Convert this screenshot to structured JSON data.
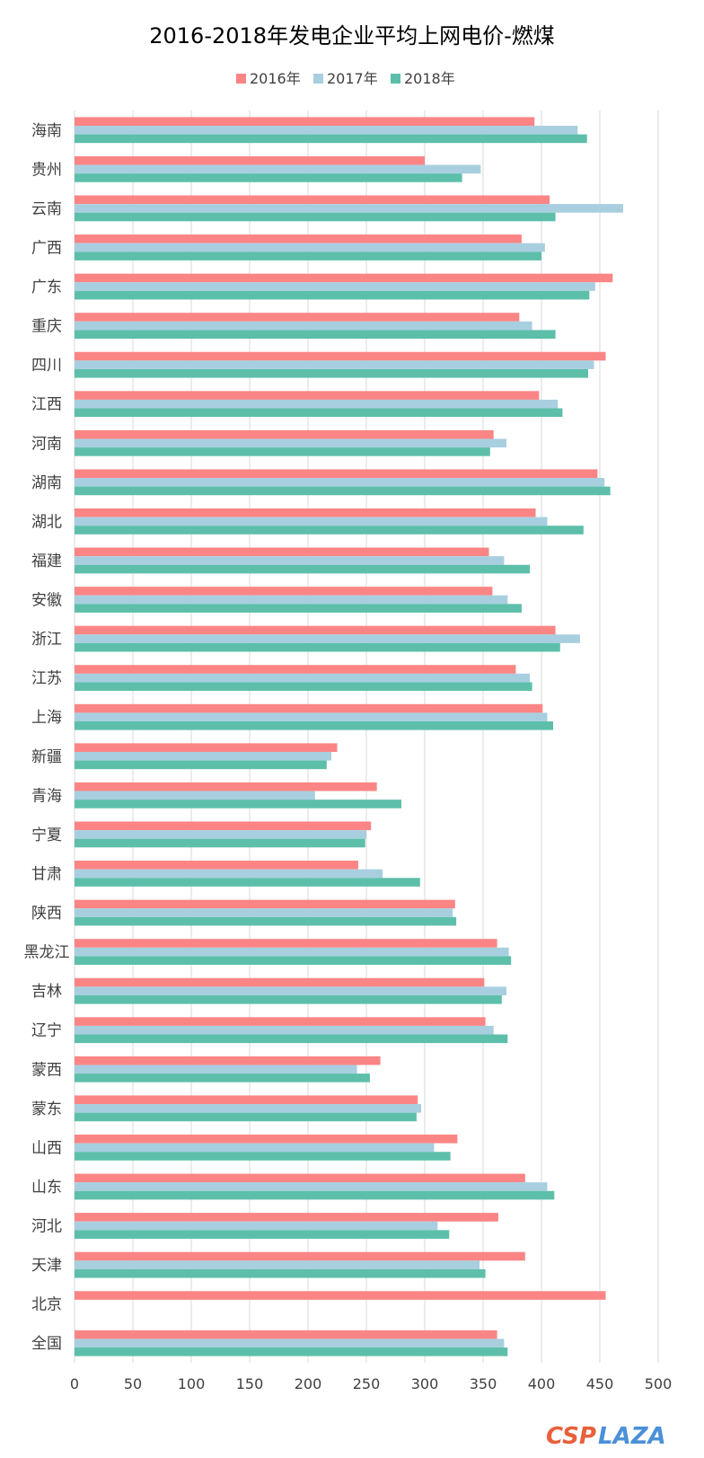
{
  "chart_data": {
    "type": "bar",
    "orientation": "horizontal",
    "title": "2016-2018年发电企业平均上网电价-燃煤",
    "categories": [
      "海南",
      "贵州",
      "云南",
      "广西",
      "广东",
      "重庆",
      "四川",
      "江西",
      "河南",
      "湖南",
      "湖北",
      "福建",
      "安徽",
      "浙江",
      "江苏",
      "上海",
      "新疆",
      "青海",
      "宁夏",
      "甘肃",
      "陕西",
      "黑龙江",
      "吉林",
      "辽宁",
      "蒙西",
      "蒙东",
      "山西",
      "山东",
      "河北",
      "天津",
      "北京",
      "全国"
    ],
    "series": [
      {
        "name": "2016年",
        "color": "#fb8585",
        "values": [
          394,
          300,
          407,
          383,
          461,
          381,
          455,
          398,
          359,
          448,
          395,
          355,
          358,
          412,
          378,
          401,
          225,
          259,
          254,
          243,
          326,
          362,
          351,
          352,
          262,
          294,
          328,
          386,
          363,
          386,
          455,
          362
        ]
      },
      {
        "name": "2017年",
        "color": "#a8cfe0",
        "values": [
          431,
          348,
          470,
          403,
          446,
          392,
          445,
          414,
          370,
          454,
          405,
          368,
          371,
          433,
          390,
          405,
          220,
          206,
          250,
          264,
          324,
          372,
          370,
          359,
          242,
          297,
          308,
          405,
          311,
          347,
          null,
          368
        ]
      },
      {
        "name": "2018年",
        "color": "#5dbfaa",
        "values": [
          439,
          332,
          412,
          400,
          441,
          412,
          440,
          418,
          356,
          459,
          436,
          390,
          383,
          416,
          392,
          410,
          216,
          280,
          249,
          296,
          327,
          374,
          366,
          371,
          253,
          293,
          322,
          411,
          321,
          352,
          null,
          371
        ]
      }
    ],
    "xlim": [
      0,
      500
    ],
    "xticks": [
      0,
      50,
      100,
      150,
      200,
      250,
      300,
      350,
      400,
      450,
      500
    ],
    "xlabel": "",
    "ylabel": "",
    "grid": "vertical",
    "legend_position": "top"
  },
  "watermark": {
    "part1": "CSP",
    "part2": "LAZA",
    "color1": "#e8603c",
    "color2": "#4a90d9"
  }
}
